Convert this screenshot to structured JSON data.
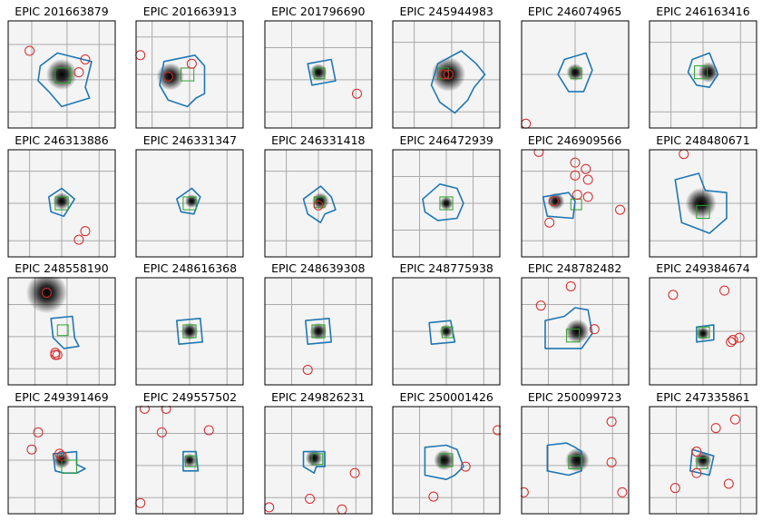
{
  "figure": {
    "colors": {
      "aperture": "#1f77b4",
      "pixel": "#2ca02c",
      "neighbor": "#d62728",
      "grid": "#aaaaaa",
      "frame": "#000000"
    }
  },
  "chart_data": [
    {
      "type": "image",
      "title": "EPIC 201663879",
      "star": {
        "x": 0.5,
        "y": 0.5,
        "spread": 0.09
      },
      "neighbors": [
        [
          0.2,
          0.28
        ],
        [
          0.66,
          0.48
        ],
        [
          0.72,
          0.36
        ]
      ],
      "aperture": [
        [
          0.3,
          0.42
        ],
        [
          0.46,
          0.3
        ],
        [
          0.78,
          0.38
        ],
        [
          0.72,
          0.62
        ],
        [
          0.76,
          0.72
        ],
        [
          0.5,
          0.8
        ],
        [
          0.38,
          0.66
        ],
        [
          0.28,
          0.56
        ]
      ],
      "pixel": [
        0.44,
        0.44,
        0.14,
        0.14
      ],
      "grid": [
        0.22,
        0.55,
        0.85
      ]
    },
    {
      "type": "image",
      "title": "EPIC 201663913",
      "star": {
        "x": 0.32,
        "y": 0.52,
        "spread": 0.08
      },
      "neighbors": [
        [
          0.04,
          0.32
        ],
        [
          0.3,
          0.52
        ],
        [
          0.52,
          0.4
        ]
      ],
      "aperture": [
        [
          0.26,
          0.38
        ],
        [
          0.55,
          0.32
        ],
        [
          0.64,
          0.42
        ],
        [
          0.64,
          0.68
        ],
        [
          0.56,
          0.72
        ],
        [
          0.48,
          0.8
        ],
        [
          0.3,
          0.74
        ],
        [
          0.22,
          0.6
        ]
      ],
      "pixel": [
        0.42,
        0.44,
        0.12,
        0.12
      ],
      "grid": [
        0.15,
        0.5,
        0.85
      ]
    },
    {
      "type": "image",
      "title": "EPIC 201796690",
      "star": {
        "x": 0.5,
        "y": 0.48,
        "spread": 0.05
      },
      "neighbors": [
        [
          0.86,
          0.68
        ]
      ],
      "aperture": [
        [
          0.4,
          0.4
        ],
        [
          0.62,
          0.36
        ],
        [
          0.66,
          0.56
        ],
        [
          0.44,
          0.6
        ]
      ],
      "pixel": [
        0.46,
        0.44,
        0.1,
        0.1
      ],
      "grid": [
        0.25,
        0.55,
        0.85
      ]
    },
    {
      "type": "image",
      "title": "EPIC 245944983",
      "star": {
        "x": 0.52,
        "y": 0.5,
        "spread": 0.1
      },
      "neighbors": [
        [
          0.48,
          0.5
        ],
        [
          0.52,
          0.5
        ]
      ],
      "aperture": [
        [
          0.42,
          0.4
        ],
        [
          0.64,
          0.28
        ],
        [
          0.78,
          0.4
        ],
        [
          0.86,
          0.5
        ],
        [
          0.76,
          0.62
        ],
        [
          0.7,
          0.74
        ],
        [
          0.58,
          0.86
        ],
        [
          0.44,
          0.76
        ],
        [
          0.36,
          0.6
        ]
      ],
      "pixel": [
        0.42,
        0.44,
        0.1,
        0.1
      ],
      "grid": [
        0.2,
        0.55,
        0.85
      ]
    },
    {
      "type": "image",
      "title": "EPIC 246074965",
      "star": {
        "x": 0.5,
        "y": 0.48,
        "spread": 0.05
      },
      "neighbors": [
        [
          0.04,
          0.96
        ]
      ],
      "aperture": [
        [
          0.4,
          0.36
        ],
        [
          0.6,
          0.3
        ],
        [
          0.66,
          0.46
        ],
        [
          0.58,
          0.66
        ],
        [
          0.44,
          0.66
        ],
        [
          0.34,
          0.5
        ]
      ],
      "pixel": [
        0.46,
        0.44,
        0.1,
        0.1
      ],
      "grid": [
        0.5
      ]
    },
    {
      "type": "image",
      "title": "EPIC 246163416",
      "star": {
        "x": 0.55,
        "y": 0.48,
        "spread": 0.06
      },
      "neighbors": [],
      "aperture": [
        [
          0.4,
          0.36
        ],
        [
          0.56,
          0.3
        ],
        [
          0.64,
          0.5
        ],
        [
          0.56,
          0.62
        ],
        [
          0.44,
          0.6
        ],
        [
          0.36,
          0.48
        ]
      ],
      "pixel": [
        0.42,
        0.42,
        0.12,
        0.12
      ],
      "grid": [
        0.2,
        0.5,
        0.85
      ]
    },
    {
      "type": "image",
      "title": "EPIC 246313886",
      "star": {
        "x": 0.5,
        "y": 0.48,
        "spread": 0.05
      },
      "neighbors": [
        [
          0.72,
          0.76
        ],
        [
          0.66,
          0.84
        ]
      ],
      "aperture": [
        [
          0.38,
          0.44
        ],
        [
          0.5,
          0.36
        ],
        [
          0.62,
          0.46
        ],
        [
          0.52,
          0.62
        ],
        [
          0.4,
          0.58
        ]
      ],
      "pixel": [
        0.44,
        0.44,
        0.12,
        0.12
      ],
      "grid": [
        0.2,
        0.5,
        0.85
      ]
    },
    {
      "type": "image",
      "title": "EPIC 246331347",
      "star": {
        "x": 0.52,
        "y": 0.48,
        "spread": 0.04
      },
      "neighbors": [],
      "aperture": [
        [
          0.38,
          0.46
        ],
        [
          0.52,
          0.36
        ],
        [
          0.6,
          0.44
        ],
        [
          0.54,
          0.6
        ],
        [
          0.42,
          0.58
        ]
      ],
      "pixel": [
        0.44,
        0.44,
        0.12,
        0.12
      ],
      "grid": [
        0.5,
        0.85
      ]
    },
    {
      "type": "image",
      "title": "EPIC 246331418",
      "star": {
        "x": 0.52,
        "y": 0.48,
        "spread": 0.05
      },
      "neighbors": [
        [
          0.5,
          0.52
        ]
      ],
      "aperture": [
        [
          0.36,
          0.46
        ],
        [
          0.52,
          0.34
        ],
        [
          0.62,
          0.44
        ],
        [
          0.66,
          0.56
        ],
        [
          0.56,
          0.6
        ],
        [
          0.52,
          0.68
        ],
        [
          0.4,
          0.6
        ]
      ],
      "pixel": [
        0.46,
        0.44,
        0.1,
        0.1
      ],
      "grid": [
        0.2,
        0.5,
        0.85
      ]
    },
    {
      "type": "image",
      "title": "EPIC 246472939",
      "star": {
        "x": 0.5,
        "y": 0.5,
        "spread": 0.04
      },
      "neighbors": [],
      "aperture": [
        [
          0.28,
          0.46
        ],
        [
          0.44,
          0.32
        ],
        [
          0.6,
          0.36
        ],
        [
          0.66,
          0.5
        ],
        [
          0.6,
          0.64
        ],
        [
          0.42,
          0.66
        ],
        [
          0.3,
          0.58
        ]
      ],
      "pixel": [
        0.44,
        0.44,
        0.12,
        0.12
      ],
      "grid": [
        0.25,
        0.5,
        0.75
      ]
    },
    {
      "type": "image",
      "title": "EPIC 246909566",
      "star": {
        "x": 0.32,
        "y": 0.48,
        "spread": 0.05
      },
      "neighbors": [
        [
          0.16,
          0.02
        ],
        [
          0.5,
          0.12
        ],
        [
          0.6,
          0.18
        ],
        [
          0.5,
          0.24
        ],
        [
          0.62,
          0.28
        ],
        [
          0.3,
          0.48
        ],
        [
          0.52,
          0.42
        ],
        [
          0.62,
          0.44
        ],
        [
          0.26,
          0.68
        ],
        [
          0.92,
          0.56
        ]
      ],
      "aperture": [
        [
          0.2,
          0.44
        ],
        [
          0.44,
          0.4
        ],
        [
          0.5,
          0.48
        ],
        [
          0.48,
          0.64
        ],
        [
          0.24,
          0.62
        ]
      ],
      "pixel": [
        0.46,
        0.46,
        0.1,
        0.1
      ],
      "grid": [
        0.2,
        0.5,
        0.85
      ]
    },
    {
      "type": "image",
      "title": "EPIC 248480671",
      "star": {
        "x": 0.48,
        "y": 0.5,
        "spread": 0.09
      },
      "neighbors": [
        [
          0.32,
          0.04
        ]
      ],
      "aperture": [
        [
          0.24,
          0.28
        ],
        [
          0.46,
          0.22
        ],
        [
          0.52,
          0.38
        ],
        [
          0.72,
          0.4
        ],
        [
          0.72,
          0.64
        ],
        [
          0.56,
          0.78
        ],
        [
          0.3,
          0.68
        ]
      ],
      "pixel": [
        0.44,
        0.52,
        0.12,
        0.12
      ],
      "grid": [
        0.5,
        0.85
      ]
    },
    {
      "type": "image",
      "title": "EPIC 248558190",
      "star": {
        "x": 0.36,
        "y": 0.14,
        "spread": 0.12
      },
      "neighbors": [
        [
          0.36,
          0.14
        ],
        [
          0.44,
          0.7
        ],
        [
          0.46,
          0.72
        ],
        [
          0.44,
          0.72
        ]
      ],
      "aperture": [
        [
          0.4,
          0.38
        ],
        [
          0.6,
          0.36
        ],
        [
          0.62,
          0.56
        ],
        [
          0.66,
          0.64
        ],
        [
          0.52,
          0.66
        ],
        [
          0.42,
          0.56
        ]
      ],
      "pixel": [
        0.46,
        0.44,
        0.1,
        0.1
      ],
      "grid": [
        0.25,
        0.55,
        0.85
      ]
    },
    {
      "type": "image",
      "title": "EPIC 248616368",
      "star": {
        "x": 0.5,
        "y": 0.5,
        "spread": 0.05
      },
      "neighbors": [],
      "aperture": [
        [
          0.38,
          0.4
        ],
        [
          0.6,
          0.38
        ],
        [
          0.62,
          0.6
        ],
        [
          0.4,
          0.62
        ]
      ],
      "pixel": [
        0.44,
        0.44,
        0.12,
        0.12
      ],
      "grid": [
        0.5,
        0.85
      ]
    },
    {
      "type": "image",
      "title": "EPIC 248639308",
      "star": {
        "x": 0.5,
        "y": 0.5,
        "spread": 0.05
      },
      "neighbors": [
        [
          0.4,
          0.86
        ]
      ],
      "aperture": [
        [
          0.38,
          0.4
        ],
        [
          0.6,
          0.38
        ],
        [
          0.62,
          0.6
        ],
        [
          0.4,
          0.62
        ]
      ],
      "pixel": [
        0.44,
        0.44,
        0.12,
        0.12
      ],
      "grid": [
        0.25,
        0.55,
        0.85
      ]
    },
    {
      "type": "image",
      "title": "EPIC 248775938",
      "star": {
        "x": 0.5,
        "y": 0.5,
        "spread": 0.04
      },
      "neighbors": [],
      "aperture": [
        [
          0.34,
          0.42
        ],
        [
          0.54,
          0.4
        ],
        [
          0.58,
          0.6
        ],
        [
          0.36,
          0.62
        ]
      ],
      "pixel": [
        0.46,
        0.46,
        0.1,
        0.1
      ],
      "grid": [
        0.5,
        0.85
      ]
    },
    {
      "type": "image",
      "title": "EPIC 248782482",
      "star": {
        "x": 0.52,
        "y": 0.5,
        "spread": 0.07
      },
      "neighbors": [
        [
          0.18,
          0.26
        ],
        [
          0.46,
          0.08
        ],
        [
          0.68,
          0.48
        ]
      ],
      "aperture": [
        [
          0.22,
          0.4
        ],
        [
          0.4,
          0.36
        ],
        [
          0.5,
          0.28
        ],
        [
          0.62,
          0.3
        ],
        [
          0.66,
          0.52
        ],
        [
          0.56,
          0.66
        ],
        [
          0.22,
          0.66
        ]
      ],
      "pixel": [
        0.42,
        0.48,
        0.12,
        0.12
      ],
      "grid": [
        0.25,
        0.55,
        0.85
      ]
    },
    {
      "type": "image",
      "title": "EPIC 249384674",
      "star": {
        "x": 0.5,
        "y": 0.52,
        "spread": 0.04
      },
      "neighbors": [
        [
          0.22,
          0.16
        ],
        [
          0.7,
          0.12
        ],
        [
          0.78,
          0.58
        ],
        [
          0.84,
          0.56
        ],
        [
          0.76,
          0.6
        ]
      ],
      "aperture": [
        [
          0.44,
          0.46
        ],
        [
          0.6,
          0.44
        ],
        [
          0.6,
          0.58
        ],
        [
          0.44,
          0.6
        ]
      ],
      "pixel": [
        0.46,
        0.46,
        0.1,
        0.1
      ],
      "grid": [
        0.5,
        0.85
      ]
    },
    {
      "type": "image",
      "title": "EPIC 249391469",
      "star": {
        "x": 0.5,
        "y": 0.5,
        "spread": 0.05
      },
      "neighbors": [
        [
          0.28,
          0.24
        ],
        [
          0.22,
          0.4
        ],
        [
          0.48,
          0.44
        ],
        [
          0.5,
          0.46
        ]
      ],
      "aperture": [
        [
          0.42,
          0.44
        ],
        [
          0.64,
          0.42
        ],
        [
          0.64,
          0.54
        ],
        [
          0.72,
          0.58
        ],
        [
          0.64,
          0.62
        ],
        [
          0.52,
          0.62
        ],
        [
          0.44,
          0.6
        ]
      ],
      "pixel": [
        0.5,
        0.5,
        0.14,
        0.12
      ],
      "grid": [
        0.25,
        0.5,
        0.85
      ]
    },
    {
      "type": "image",
      "title": "EPIC 249557502",
      "star": {
        "x": 0.5,
        "y": 0.5,
        "spread": 0.04
      },
      "neighbors": [
        [
          0.08,
          0.02
        ],
        [
          0.28,
          0.02
        ],
        [
          0.24,
          0.24
        ],
        [
          0.68,
          0.22
        ],
        [
          0.04,
          0.9
        ]
      ],
      "aperture": [
        [
          0.44,
          0.42
        ],
        [
          0.56,
          0.42
        ],
        [
          0.58,
          0.6
        ],
        [
          0.44,
          0.6
        ]
      ],
      "pixel": [
        0.46,
        0.46,
        0.1,
        0.1
      ],
      "grid": [
        0.25,
        0.55,
        0.85
      ]
    },
    {
      "type": "image",
      "title": "EPIC 249826231",
      "star": {
        "x": 0.46,
        "y": 0.48,
        "spread": 0.05
      },
      "neighbors": [
        [
          0.84,
          0.62
        ],
        [
          0.42,
          0.86
        ],
        [
          0.04,
          0.94
        ],
        [
          0.72,
          0.96
        ]
      ],
      "aperture": [
        [
          0.36,
          0.42
        ],
        [
          0.56,
          0.42
        ],
        [
          0.56,
          0.56
        ],
        [
          0.48,
          0.56
        ],
        [
          0.46,
          0.62
        ],
        [
          0.36,
          0.56
        ]
      ],
      "pixel": [
        0.44,
        0.44,
        0.1,
        0.1
      ],
      "grid": [
        0.25,
        0.55,
        0.85
      ]
    },
    {
      "type": "image",
      "title": "EPIC 250001426",
      "star": {
        "x": 0.48,
        "y": 0.5,
        "spread": 0.06
      },
      "neighbors": [
        [
          0.98,
          0.22
        ],
        [
          0.68,
          0.56
        ],
        [
          0.38,
          0.84
        ]
      ],
      "aperture": [
        [
          0.3,
          0.38
        ],
        [
          0.5,
          0.36
        ],
        [
          0.6,
          0.4
        ],
        [
          0.66,
          0.56
        ],
        [
          0.58,
          0.64
        ],
        [
          0.5,
          0.68
        ],
        [
          0.3,
          0.64
        ]
      ],
      "pixel": [
        0.44,
        0.44,
        0.12,
        0.12
      ],
      "grid": [
        0.25,
        0.55,
        0.85
      ]
    },
    {
      "type": "image",
      "title": "EPIC 250099723",
      "star": {
        "x": 0.52,
        "y": 0.5,
        "spread": 0.07
      },
      "neighbors": [
        [
          0.84,
          0.14
        ],
        [
          0.84,
          0.52
        ],
        [
          0.94,
          0.8
        ],
        [
          0.02,
          0.8
        ]
      ],
      "aperture": [
        [
          0.24,
          0.36
        ],
        [
          0.42,
          0.34
        ],
        [
          0.5,
          0.38
        ],
        [
          0.56,
          0.42
        ],
        [
          0.56,
          0.6
        ],
        [
          0.44,
          0.64
        ],
        [
          0.24,
          0.6
        ]
      ],
      "pixel": [
        0.44,
        0.46,
        0.12,
        0.12
      ],
      "grid": [
        0.25,
        0.55,
        0.85
      ]
    },
    {
      "type": "image",
      "title": "EPIC 247335861",
      "star": {
        "x": 0.5,
        "y": 0.5,
        "spread": 0.05
      },
      "neighbors": [
        [
          0.62,
          0.2
        ],
        [
          0.8,
          0.12
        ],
        [
          0.44,
          0.42
        ],
        [
          0.74,
          0.72
        ],
        [
          0.24,
          0.76
        ],
        [
          0.44,
          0.62
        ]
      ],
      "aperture": [
        [
          0.4,
          0.4
        ],
        [
          0.6,
          0.46
        ],
        [
          0.56,
          0.64
        ],
        [
          0.38,
          0.6
        ]
      ],
      "pixel": [
        0.44,
        0.48,
        0.1,
        0.1
      ],
      "grid": [
        0.25,
        0.55,
        0.85
      ]
    }
  ]
}
